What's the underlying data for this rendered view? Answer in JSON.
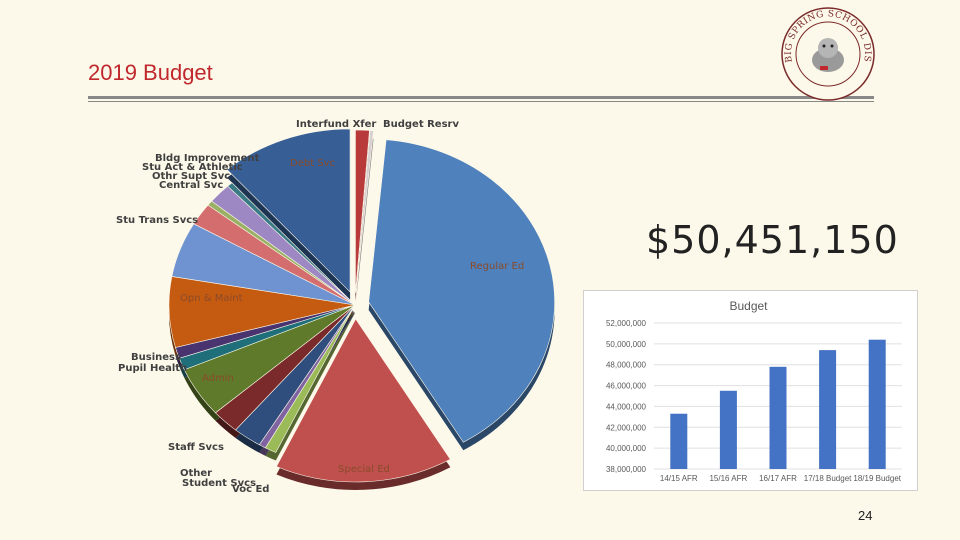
{
  "slide": {
    "title": "2019 Budget",
    "total": "$50,451,150",
    "page_number": "24",
    "logo_text": "BIG SPRING SCHOOL DISTRICT"
  },
  "chart_data": [
    {
      "type": "pie",
      "title": "",
      "categories": [
        "Interfund Xfer",
        "Budget Resrv",
        "Regular Ed",
        "Special Ed",
        "Voc Ed",
        "Other",
        "Student Svcs",
        "Staff Svcs",
        "Admin",
        "Pupil Health",
        "Business",
        "Opn & Maint",
        "Stu Trans Svcs",
        "Central Svc",
        "Othr Supt Svc",
        "Stu Act & Athletic",
        "Bldg Improvements",
        "Debt Svc"
      ],
      "values": [
        1.2,
        0.3,
        40.0,
        15.5,
        1.0,
        0.6,
        2.5,
        2.4,
        5.0,
        1.2,
        1.1,
        7.0,
        5.5,
        2.2,
        0.5,
        2.0,
        0.5,
        11.5
      ],
      "colors": [
        "#b83a3a",
        "#d8d0d0",
        "#4f81bd",
        "#c0504d",
        "#9bbb59",
        "#8064a2",
        "#2f4e7e",
        "#7a2a2a",
        "#5e7a2a",
        "#1f6f7a",
        "#4a3470",
        "#c55a11",
        "#6f93d0",
        "#d46d6d",
        "#9ab065",
        "#9d88c3",
        "#3a7a86",
        "#375f96"
      ],
      "labels_shown": [
        "Interfund Xfer",
        "Budget Resrv",
        "Regular Ed",
        "Special Ed",
        "Voc Ed",
        "Student Svcs",
        "Other",
        "Staff Svcs",
        "Admin",
        "Pupil Health",
        "Business",
        "Opn & Maint",
        "Stu Trans Svcs",
        "Central Svc",
        "Othr Supt Svc",
        "Stu Act & Athletic",
        "Bldg Improvement",
        "Debt Svc"
      ]
    },
    {
      "type": "bar",
      "title": "Budget",
      "categories": [
        "14/15 AFR",
        "15/16 AFR",
        "16/17 AFR",
        "17/18 Budget",
        "18/19 Budget"
      ],
      "values": [
        43300000,
        45500000,
        47800000,
        49400000,
        50400000
      ],
      "ylim": [
        38000000,
        52000000
      ],
      "yticks": [
        "52,000,000",
        "50,000,000",
        "48,000,000",
        "46,000,000",
        "44,000,000",
        "42,000,000",
        "40,000,000",
        "38,000,000"
      ],
      "bar_color": "#4472c4",
      "grid": true
    }
  ]
}
